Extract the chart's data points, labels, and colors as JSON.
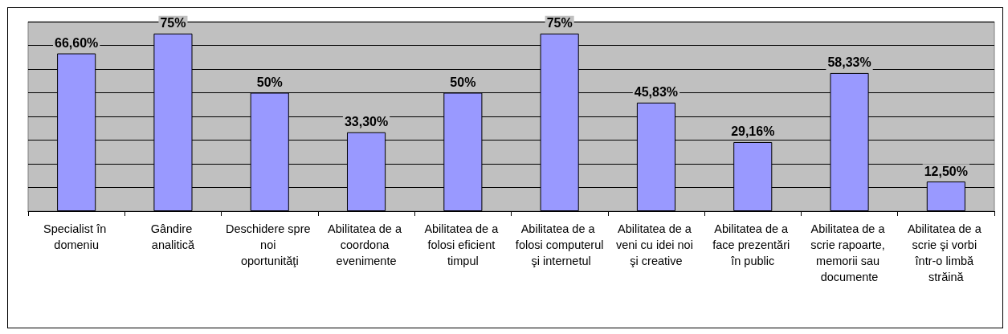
{
  "chart_data": {
    "type": "bar",
    "categories": [
      "Specialist în domeniu",
      "Gândire analitică",
      "Deschidere spre noi oportunităţi",
      "Abilitatea de a coordona evenimente",
      "Abilitatea de a folosi eficient timpul",
      "Abilitatea de a folosi computerul şi internetul",
      "Abilitatea de a veni cu idei noi şi creative",
      "Abilitatea de a face prezentări în public",
      "Abilitatea de a scrie rapoarte, memorii sau documente",
      "Abilitatea de a scrie şi vorbi într-o limbă străină"
    ],
    "values": [
      66.6,
      75,
      50,
      33.3,
      50,
      75,
      45.83,
      29.16,
      58.33,
      12.5
    ],
    "value_labels": [
      "66,60%",
      "75%",
      "50%",
      "33,30%",
      "50%",
      "75%",
      "45,83%",
      "29,16%",
      "58,33%",
      "12,50%"
    ],
    "color": "#9999ff",
    "ylim": [
      0,
      80
    ],
    "yticks": [
      {
        "value": 0,
        "label": null
      },
      {
        "value": 10,
        "label": null
      },
      {
        "value": 20,
        "label": null
      },
      {
        "value": 30,
        "label": null
      },
      {
        "value": 40,
        "label": null
      },
      {
        "value": 50,
        "label": null
      },
      {
        "value": 60,
        "label": null
      },
      {
        "value": 70,
        "label": null
      },
      {
        "value": 80,
        "label": null
      }
    ],
    "tick_labels": "x",
    "grid": "y"
  }
}
